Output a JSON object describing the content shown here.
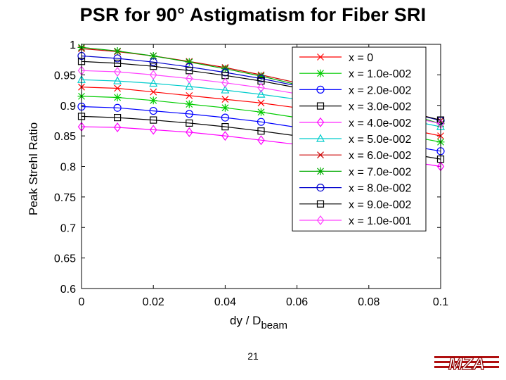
{
  "slide": {
    "title": "PSR for 90° Astigmatism for Fiber SRI",
    "page_number": "21",
    "logo_text": "MZA"
  },
  "chart_data": {
    "type": "line",
    "title": "",
    "ylabel": "Peak Strehl Ratio",
    "xlabel_main": "dy / D",
    "xlabel_sub": "beam",
    "xlim": [
      0,
      0.1
    ],
    "ylim": [
      0.6,
      1.0
    ],
    "xticks": [
      "0",
      "0.02",
      "0.04",
      "0.06",
      "0.08",
      "0.1"
    ],
    "yticks": [
      "0.6",
      "0.65",
      "0.7",
      "0.75",
      "0.8",
      "0.85",
      "0.9",
      "0.95",
      "1"
    ],
    "legend_position": "top-right",
    "x": [
      0,
      0.01,
      0.02,
      0.03,
      0.04,
      0.05,
      0.06,
      0.07,
      0.08,
      0.09,
      0.1
    ],
    "series": [
      {
        "name": "x = 0",
        "marker": "x",
        "color": "#ff0000",
        "values": [
          0.93,
          0.928,
          0.922,
          0.916,
          0.91,
          0.904,
          0.896,
          0.886,
          0.874,
          0.862,
          0.85
        ]
      },
      {
        "name": "x = 1.0e-002",
        "marker": "star",
        "color": "#00cc00",
        "values": [
          0.915,
          0.913,
          0.908,
          0.902,
          0.896,
          0.889,
          0.88,
          0.871,
          0.861,
          0.851,
          0.84
        ]
      },
      {
        "name": "x = 2.0e-002",
        "marker": "circle",
        "color": "#0000ff",
        "values": [
          0.898,
          0.896,
          0.891,
          0.886,
          0.88,
          0.873,
          0.864,
          0.855,
          0.845,
          0.835,
          0.825
        ]
      },
      {
        "name": "x = 3.0e-002",
        "marker": "square",
        "color": "#000000",
        "values": [
          0.882,
          0.88,
          0.876,
          0.871,
          0.865,
          0.858,
          0.85,
          0.842,
          0.832,
          0.822,
          0.812
        ]
      },
      {
        "name": "x = 4.0e-002",
        "marker": "diamond",
        "color": "#ff00ff",
        "values": [
          0.865,
          0.864,
          0.86,
          0.856,
          0.85,
          0.843,
          0.836,
          0.827,
          0.818,
          0.809,
          0.8
        ]
      },
      {
        "name": "x = 5.0e-002",
        "marker": "triangle",
        "color": "#00cccc",
        "values": [
          0.942,
          0.94,
          0.936,
          0.931,
          0.925,
          0.918,
          0.91,
          0.9,
          0.889,
          0.877,
          0.865
        ]
      },
      {
        "name": "x = 6.0e-002",
        "marker": "x",
        "color": "#cc0000",
        "values": [
          0.993,
          0.988,
          0.981,
          0.972,
          0.962,
          0.95,
          0.937,
          0.923,
          0.908,
          0.892,
          0.875
        ]
      },
      {
        "name": "x = 7.0e-002",
        "marker": "star",
        "color": "#00aa00",
        "values": [
          0.995,
          0.989,
          0.981,
          0.971,
          0.96,
          0.948,
          0.934,
          0.919,
          0.903,
          0.887,
          0.87
        ]
      },
      {
        "name": "x = 8.0e-002",
        "marker": "circle",
        "color": "#0000cc",
        "values": [
          0.981,
          0.977,
          0.971,
          0.963,
          0.954,
          0.944,
          0.932,
          0.919,
          0.905,
          0.89,
          0.875
        ]
      },
      {
        "name": "x = 9.0e-002",
        "marker": "square",
        "color": "#000000",
        "values": [
          0.972,
          0.969,
          0.964,
          0.957,
          0.949,
          0.94,
          0.929,
          0.917,
          0.904,
          0.89,
          0.876
        ]
      },
      {
        "name": "x = 1.0e-001",
        "marker": "diamond",
        "color": "#ff44ff",
        "values": [
          0.957,
          0.955,
          0.95,
          0.944,
          0.937,
          0.929,
          0.919,
          0.908,
          0.896,
          0.883,
          0.87
        ]
      }
    ]
  }
}
